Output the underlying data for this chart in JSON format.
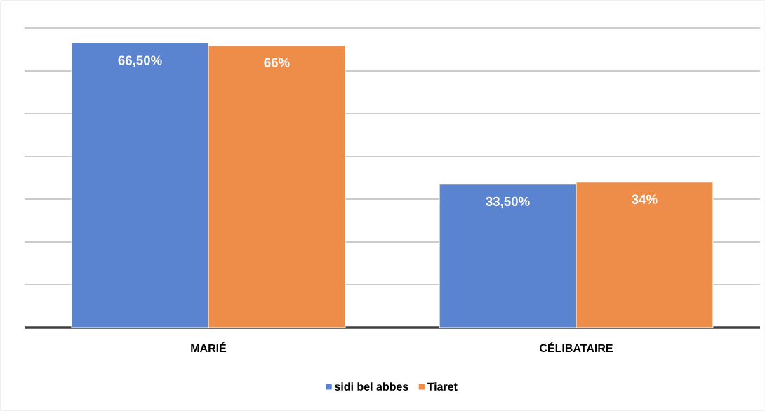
{
  "chart_data": {
    "type": "bar",
    "categories": [
      "MARIÉ",
      "CÉLIBATAIRE"
    ],
    "series": [
      {
        "name": "sidi bel abbes",
        "color": "#5b84d0",
        "values": [
          66.5,
          33.5
        ],
        "value_labels": [
          "66,50%",
          "33,50%"
        ]
      },
      {
        "name": "Tiaret",
        "color": "#ee8c4a",
        "values": [
          66,
          34
        ],
        "value_labels": [
          "66%",
          "34%"
        ]
      }
    ],
    "ylim": [
      0,
      70
    ],
    "yticks": [
      {
        "value": 0,
        "label": null
      },
      {
        "value": 10,
        "label": null
      },
      {
        "value": 20,
        "label": null
      },
      {
        "value": 30,
        "label": null
      },
      {
        "value": 40,
        "label": null
      },
      {
        "value": 50,
        "label": null
      },
      {
        "value": 60,
        "label": null
      },
      {
        "value": 70,
        "label": null
      }
    ],
    "grid": "y",
    "legend": "bottom"
  }
}
